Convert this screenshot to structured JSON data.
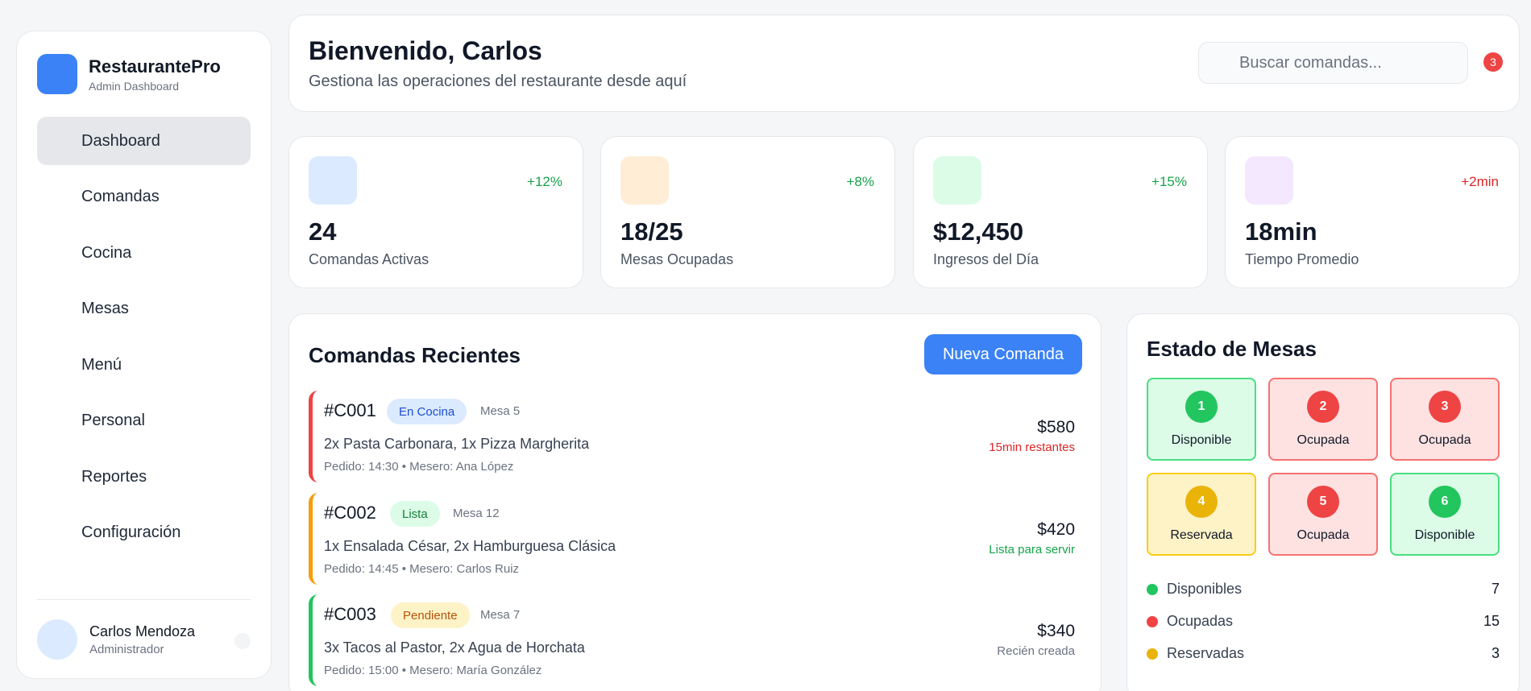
{
  "brand": {
    "name": "RestaurantePro",
    "subtitle": "Admin Dashboard"
  },
  "nav": [
    {
      "label": "Dashboard",
      "active": true
    },
    {
      "label": "Comandas"
    },
    {
      "label": "Cocina"
    },
    {
      "label": "Mesas"
    },
    {
      "label": "Menú"
    },
    {
      "label": "Personal"
    },
    {
      "label": "Reportes"
    },
    {
      "label": "Configuración"
    }
  ],
  "user": {
    "name": "Carlos Mendoza",
    "role": "Administrador"
  },
  "header": {
    "welcome": "Bienvenido, Carlos",
    "subtitle": "Gestiona las operaciones del restaurante desde aquí",
    "search_placeholder": "Buscar comandas...",
    "notifications": "3"
  },
  "stats": [
    {
      "value": "24",
      "label": "Comandas Activas",
      "change": "+12%",
      "change_color": "#16a34a",
      "icon_bg": "#dbeafe"
    },
    {
      "value": "18/25",
      "label": "Mesas Ocupadas",
      "change": "+8%",
      "change_color": "#16a34a",
      "icon_bg": "#ffedd5"
    },
    {
      "value": "$12,450",
      "label": "Ingresos del Día",
      "change": "+15%",
      "change_color": "#16a34a",
      "icon_bg": "#dcfce7"
    },
    {
      "value": "18min",
      "label": "Tiempo Promedio",
      "change": "+2min",
      "change_color": "#dc2626",
      "icon_bg": "#f3e8ff"
    }
  ],
  "orders": {
    "title": "Comandas Recientes",
    "new_button": "Nueva Comanda",
    "items": [
      {
        "id": "#C001",
        "status": "En Cocina",
        "table": "Mesa 5",
        "items": "2x Pasta Carbonara, 1x Pizza Margherita",
        "meta": "Pedido: 14:30 • Mesero: Ana López",
        "total": "$580",
        "eta": "15min restantes",
        "accent": "#ef4444",
        "status_bg": "#dbeafe",
        "status_fg": "#1d4ed8",
        "eta_color": "#dc2626"
      },
      {
        "id": "#C002",
        "status": "Lista",
        "table": "Mesa 12",
        "items": "1x Ensalada César, 2x Hamburguesa Clásica",
        "meta": "Pedido: 14:45 • Mesero: Carlos Ruiz",
        "total": "$420",
        "eta": "Lista para servir",
        "accent": "#f59e0b",
        "status_bg": "#dcfce7",
        "status_fg": "#15803d",
        "eta_color": "#16a34a"
      },
      {
        "id": "#C003",
        "status": "Pendiente",
        "table": "Mesa 7",
        "items": "3x Tacos al Pastor, 2x Agua de Horchata",
        "meta": "Pedido: 15:00 • Mesero: María González",
        "total": "$340",
        "eta": "Recién creada",
        "accent": "#22c55e",
        "status_bg": "#fef3c7",
        "status_fg": "#b45309",
        "eta_color": "#6b7280"
      }
    ]
  },
  "tables": {
    "title": "Estado de Mesas",
    "tiles": [
      {
        "num": "1",
        "label": "Disponible",
        "state": "available"
      },
      {
        "num": "2",
        "label": "Ocupada",
        "state": "occupied"
      },
      {
        "num": "3",
        "label": "Ocupada",
        "state": "occupied"
      },
      {
        "num": "4",
        "label": "Reservada",
        "state": "reserved"
      },
      {
        "num": "5",
        "label": "Ocupada",
        "state": "occupied"
      },
      {
        "num": "6",
        "label": "Disponible",
        "state": "available"
      }
    ],
    "legend": [
      {
        "label": "Disponibles",
        "count": "7",
        "color": "#22c55e"
      },
      {
        "label": "Ocupadas",
        "count": "15",
        "color": "#ef4444"
      },
      {
        "label": "Reservadas",
        "count": "3",
        "color": "#eab308"
      }
    ]
  },
  "state_colors": {
    "available": {
      "bg": "#dcfce7",
      "border": "#4ade80",
      "dot": "#22c55e"
    },
    "occupied": {
      "bg": "#fee2e2",
      "border": "#f87171",
      "dot": "#ef4444"
    },
    "reserved": {
      "bg": "#fef3c7",
      "border": "#facc15",
      "dot": "#eab308"
    }
  }
}
